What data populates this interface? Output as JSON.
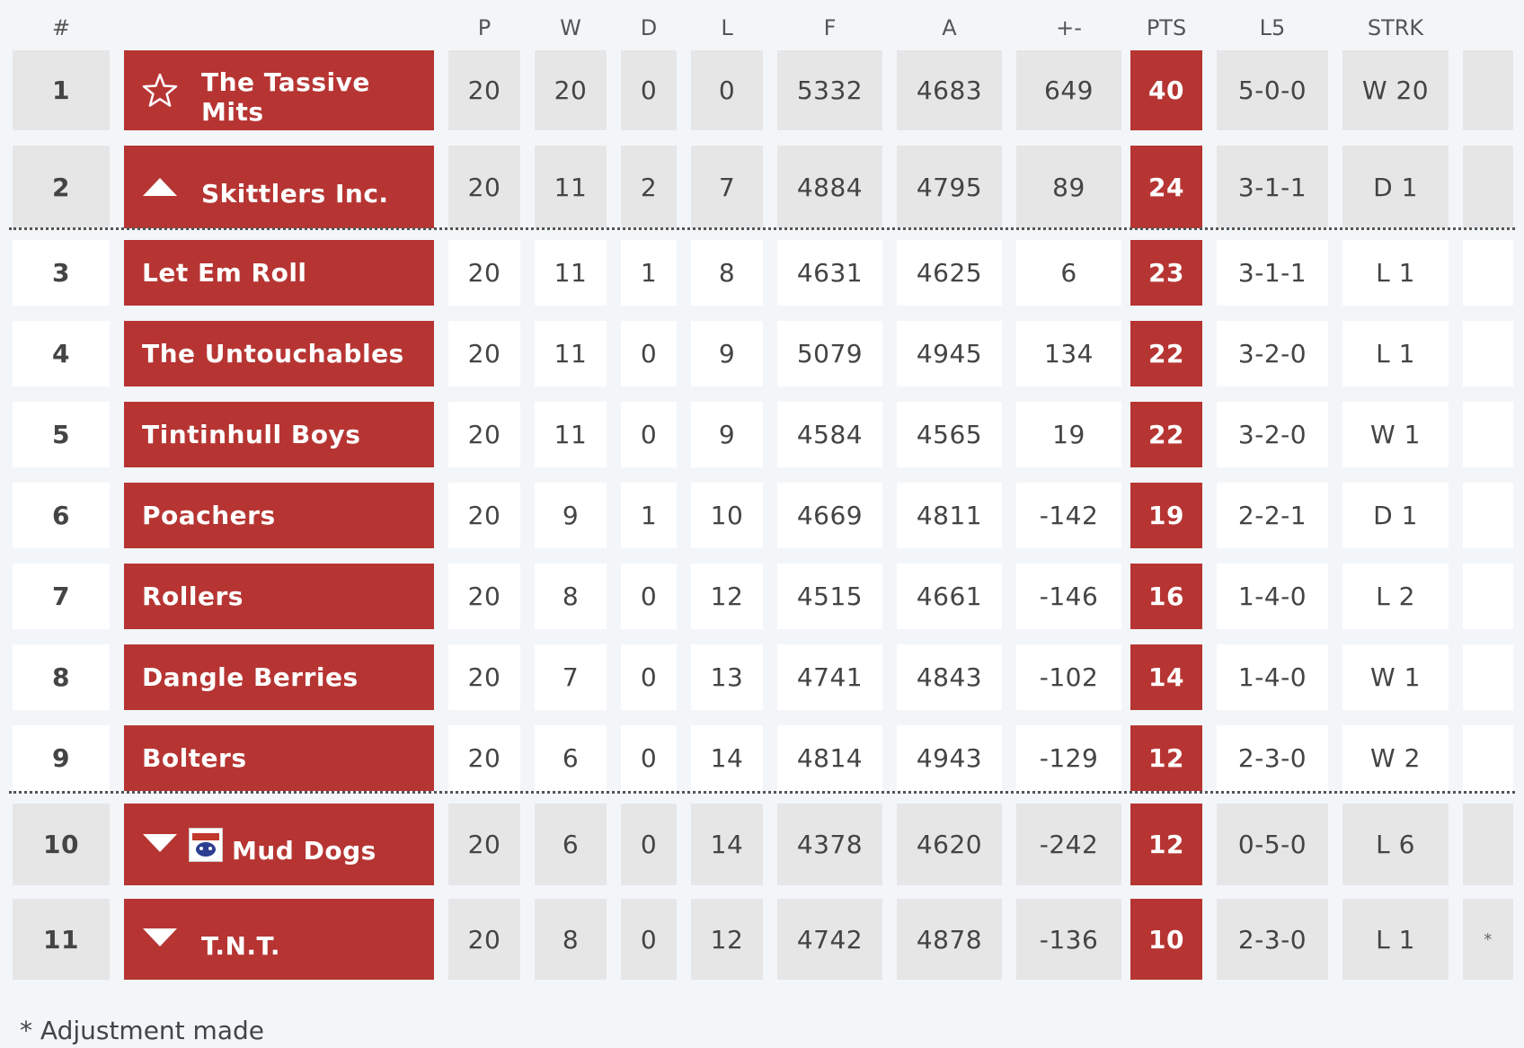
{
  "headers": {
    "pos": "#",
    "team": "",
    "p": "P",
    "w": "W",
    "d": "D",
    "l": "L",
    "f": "F",
    "a": "A",
    "diff": "+-",
    "pts": "PTS",
    "l5": "L5",
    "strk": "STRK"
  },
  "rows": [
    {
      "pos": "1",
      "team": "The Tassive Mits",
      "icon": "star-icon",
      "p": "20",
      "w": "20",
      "d": "0",
      "l": "0",
      "f": "5332",
      "a": "4683",
      "diff": "649",
      "pts": "40",
      "l5": "5-0-0",
      "strk": "W 20",
      "adj": ""
    },
    {
      "pos": "2",
      "team": "Skittlers Inc.",
      "icon": "triangle-up-icon",
      "p": "20",
      "w": "11",
      "d": "2",
      "l": "7",
      "f": "4884",
      "a": "4795",
      "diff": "89",
      "pts": "24",
      "l5": "3-1-1",
      "strk": "D 1",
      "adj": ""
    },
    {
      "pos": "3",
      "team": "Let Em Roll",
      "p": "20",
      "w": "11",
      "d": "1",
      "l": "8",
      "f": "4631",
      "a": "4625",
      "diff": "6",
      "pts": "23",
      "l5": "3-1-1",
      "strk": "L 1",
      "adj": ""
    },
    {
      "pos": "4",
      "team": "The Untouchables",
      "p": "20",
      "w": "11",
      "d": "0",
      "l": "9",
      "f": "5079",
      "a": "4945",
      "diff": "134",
      "pts": "22",
      "l5": "3-2-0",
      "strk": "L 1",
      "adj": ""
    },
    {
      "pos": "5",
      "team": "Tintinhull Boys",
      "p": "20",
      "w": "11",
      "d": "0",
      "l": "9",
      "f": "4584",
      "a": "4565",
      "diff": "19",
      "pts": "22",
      "l5": "3-2-0",
      "strk": "W 1",
      "adj": ""
    },
    {
      "pos": "6",
      "team": "Poachers",
      "p": "20",
      "w": "9",
      "d": "1",
      "l": "10",
      "f": "4669",
      "a": "4811",
      "diff": "-142",
      "pts": "19",
      "l5": "2-2-1",
      "strk": "D 1",
      "adj": ""
    },
    {
      "pos": "7",
      "team": "Rollers",
      "p": "20",
      "w": "8",
      "d": "0",
      "l": "12",
      "f": "4515",
      "a": "4661",
      "diff": "-146",
      "pts": "16",
      "l5": "1-4-0",
      "strk": "L 2",
      "adj": ""
    },
    {
      "pos": "8",
      "team": "Dangle Berries",
      "p": "20",
      "w": "7",
      "d": "0",
      "l": "13",
      "f": "4741",
      "a": "4843",
      "diff": "-102",
      "pts": "14",
      "l5": "1-4-0",
      "strk": "W 1",
      "adj": ""
    },
    {
      "pos": "9",
      "team": "Bolters",
      "p": "20",
      "w": "6",
      "d": "0",
      "l": "14",
      "f": "4814",
      "a": "4943",
      "diff": "-129",
      "pts": "12",
      "l5": "2-3-0",
      "strk": "W 2",
      "adj": ""
    },
    {
      "pos": "10",
      "team": "Mud Dogs",
      "icon": "triangle-down-icon",
      "crest": true,
      "p": "20",
      "w": "6",
      "d": "0",
      "l": "14",
      "f": "4378",
      "a": "4620",
      "diff": "-242",
      "pts": "12",
      "l5": "0-5-0",
      "strk": "L 6",
      "adj": ""
    },
    {
      "pos": "11",
      "team": "T.N.T.",
      "icon": "triangle-down-icon",
      "p": "20",
      "w": "8",
      "d": "0",
      "l": "12",
      "f": "4742",
      "a": "4878",
      "diff": "-136",
      "pts": "10",
      "l5": "2-3-0",
      "strk": "L 1",
      "adj": "*"
    }
  ],
  "footnote": "* Adjustment made",
  "colors": {
    "accent": "#b63533",
    "grey": "#e6e6e6",
    "white": "#ffffff",
    "background": "#f3f6f9"
  }
}
